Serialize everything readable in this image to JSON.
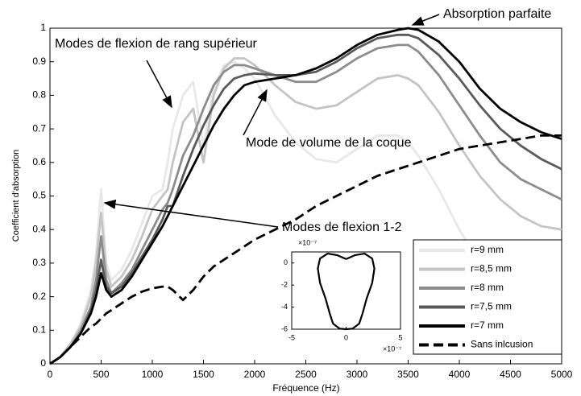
{
  "chart_data": [
    {
      "type": "line",
      "xlabel": "Fréquence (Hz)",
      "ylabel": "Coefficient d'absorption",
      "x": [
        0,
        100,
        200,
        300,
        400,
        450,
        500,
        550,
        600,
        700,
        800,
        900,
        1000,
        1100,
        1150,
        1200,
        1300,
        1400,
        1500,
        1600,
        1700,
        1800,
        1900,
        2000,
        2200,
        2400,
        2600,
        2800,
        3000,
        3200,
        3400,
        3500,
        3600,
        3800,
        4000,
        4200,
        4400,
        4600,
        4800,
        5000
      ],
      "series": [
        {
          "name": "r=9 mm",
          "color": "#e8e8e8",
          "values": [
            0,
            0.02,
            0.06,
            0.12,
            0.22,
            0.33,
            0.52,
            0.3,
            0.25,
            0.28,
            0.34,
            0.42,
            0.5,
            0.52,
            0.6,
            0.7,
            0.8,
            0.84,
            0.65,
            0.82,
            0.89,
            0.9,
            0.88,
            0.85,
            0.74,
            0.66,
            0.61,
            0.6,
            0.64,
            0.68,
            0.68,
            0.66,
            0.62,
            0.52,
            0.4,
            0.3,
            0.22,
            0.18,
            0.15,
            0.13
          ]
        },
        {
          "name": "r=8,5 mm",
          "color": "#c4c4c4",
          "values": [
            0,
            0.02,
            0.06,
            0.11,
            0.2,
            0.3,
            0.45,
            0.28,
            0.23,
            0.26,
            0.31,
            0.38,
            0.46,
            0.5,
            0.52,
            0.6,
            0.72,
            0.76,
            0.6,
            0.8,
            0.88,
            0.91,
            0.91,
            0.89,
            0.83,
            0.78,
            0.76,
            0.77,
            0.81,
            0.85,
            0.86,
            0.85,
            0.83,
            0.75,
            0.65,
            0.56,
            0.49,
            0.44,
            0.41,
            0.4
          ]
        },
        {
          "name": "r=8 mm",
          "color": "#8c8c8c",
          "values": [
            0,
            0.02,
            0.05,
            0.1,
            0.17,
            0.25,
            0.38,
            0.25,
            0.21,
            0.24,
            0.28,
            0.34,
            0.4,
            0.46,
            0.48,
            0.52,
            0.62,
            0.68,
            0.76,
            0.83,
            0.87,
            0.89,
            0.89,
            0.88,
            0.86,
            0.84,
            0.84,
            0.87,
            0.91,
            0.94,
            0.95,
            0.95,
            0.93,
            0.86,
            0.77,
            0.68,
            0.6,
            0.55,
            0.52,
            0.49
          ]
        },
        {
          "name": "r=7,5 mm",
          "color": "#5a5a5a",
          "values": [
            0,
            0.02,
            0.05,
            0.09,
            0.16,
            0.22,
            0.31,
            0.23,
            0.21,
            0.23,
            0.27,
            0.32,
            0.37,
            0.43,
            0.47,
            0.47,
            0.56,
            0.64,
            0.71,
            0.77,
            0.82,
            0.85,
            0.86,
            0.865,
            0.86,
            0.86,
            0.87,
            0.9,
            0.94,
            0.97,
            0.98,
            0.98,
            0.97,
            0.92,
            0.85,
            0.77,
            0.7,
            0.65,
            0.61,
            0.58
          ]
        },
        {
          "name": "r=7 mm",
          "color": "#000000",
          "values": [
            0,
            0.02,
            0.05,
            0.09,
            0.15,
            0.2,
            0.27,
            0.22,
            0.2,
            0.22,
            0.26,
            0.31,
            0.36,
            0.41,
            0.44,
            0.47,
            0.53,
            0.59,
            0.65,
            0.71,
            0.76,
            0.8,
            0.83,
            0.84,
            0.85,
            0.86,
            0.88,
            0.91,
            0.95,
            0.98,
            0.995,
            1.0,
            0.995,
            0.96,
            0.9,
            0.82,
            0.76,
            0.72,
            0.69,
            0.67
          ]
        },
        {
          "name": "Sans inlcusion",
          "color": "#000000",
          "dashed": true,
          "values": [
            0,
            0.02,
            0.05,
            0.08,
            0.11,
            0.12,
            0.135,
            0.15,
            0.16,
            0.18,
            0.2,
            0.215,
            0.225,
            0.23,
            0.23,
            0.22,
            0.19,
            0.22,
            0.26,
            0.29,
            0.31,
            0.33,
            0.35,
            0.37,
            0.4,
            0.43,
            0.47,
            0.5,
            0.53,
            0.56,
            0.58,
            0.59,
            0.6,
            0.62,
            0.64,
            0.65,
            0.66,
            0.67,
            0.68,
            0.68
          ]
        }
      ],
      "xlim": [
        0,
        5000
      ],
      "xticks": [
        0,
        500,
        1000,
        1500,
        2000,
        2500,
        3000,
        3500,
        4000,
        4500,
        5000
      ],
      "ylim": [
        0,
        1
      ],
      "yticks": [
        0,
        0.1,
        0.2,
        0.3,
        0.4,
        0.5,
        0.6,
        0.7,
        0.8,
        0.9,
        1
      ],
      "legend": "lower right",
      "annotations": [
        "Absorption parfaite",
        "Modes de flexion de rang supérieur",
        "Mode de volume de la coque",
        "Modes de flexion 1-2"
      ]
    },
    {
      "type": "line",
      "x_scale_label": "×10⁻⁷",
      "y_scale_label": "×10⁻⁷",
      "x": [
        0,
        0.8,
        1.7,
        2.4,
        2.6,
        2.4,
        1.9,
        1.5,
        1.2,
        0.6,
        0,
        -0.6,
        -1.2,
        -1.5,
        -1.9,
        -2.4,
        -2.6,
        -2.4,
        -1.7,
        -0.8,
        0
      ],
      "series": [
        {
          "color": "#000000",
          "values": [
            0.35,
            0.7,
            0.85,
            0.4,
            -0.5,
            -1.8,
            -3.2,
            -4.6,
            -5.5,
            -5.95,
            -6,
            -5.95,
            -5.5,
            -4.6,
            -3.2,
            -1.8,
            -0.5,
            0.4,
            0.85,
            0.7,
            0.35
          ]
        }
      ],
      "xlim": [
        -5,
        5
      ],
      "xticks": [
        -5,
        0,
        5
      ],
      "ylim": [
        -6,
        1
      ],
      "yticks": [
        0,
        -2,
        -4,
        -6
      ]
    }
  ]
}
